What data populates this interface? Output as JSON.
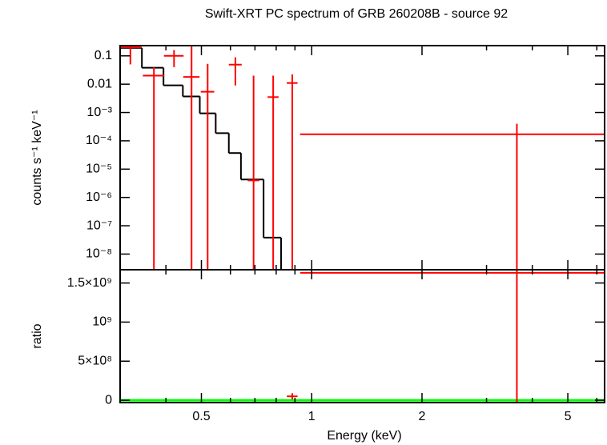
{
  "chart_data": [
    {
      "type": "errorbar",
      "title": "Swift-XRT PC spectrum of GRB 260208B - source 92",
      "y_label": "counts s⁻¹ keV⁻¹",
      "xlog": true,
      "ylog": true,
      "xlim": [
        0.3,
        6.3
      ],
      "ylim": [
        2.8e-09,
        0.23
      ],
      "xticks": [
        0.5,
        1,
        2,
        5
      ],
      "xminorticks": [
        0.3,
        0.4,
        0.6,
        0.7,
        0.8,
        0.9,
        3,
        4,
        6
      ],
      "yticks": [
        {
          "value": 0.1,
          "label": "0.1"
        },
        {
          "value": 0.01,
          "label": "0.01"
        },
        {
          "value": 0.001,
          "label": "10⁻³"
        },
        {
          "value": 0.0001,
          "label": "10⁻⁴"
        },
        {
          "value": 1e-05,
          "label": "10⁻⁵"
        },
        {
          "value": 1e-06,
          "label": "10⁻⁶"
        },
        {
          "value": 1e-07,
          "label": "10⁻⁷"
        },
        {
          "value": 1e-08,
          "label": "10⁻⁸"
        }
      ],
      "data": {
        "color": "#ff0000",
        "x": [
          0.32,
          0.371,
          0.421,
          0.47,
          0.52,
          0.619,
          0.694,
          0.785,
          0.885,
          3.63
        ],
        "xerr": [
          0.023,
          0.025,
          0.026,
          0.024,
          0.022,
          0.025,
          0.025,
          0.027,
          0.03,
          2.7
        ],
        "y": [
          0.2,
          0.02,
          0.1,
          0.018,
          0.0054,
          0.049,
          4e-06,
          0.0035,
          0.011,
          0.00017
        ],
        "yerr": [
          0.15,
          0.02,
          0.06,
          0.25,
          0.047,
          0.04,
          0.02,
          0.0165,
          0.011,
          0.00023
        ]
      },
      "model": {
        "color": "#000000",
        "bins": [
          0.298,
          0.344,
          0.394,
          0.445,
          0.495,
          0.547,
          0.594,
          0.641,
          0.739,
          0.825
        ],
        "values": [
          0.19,
          0.038,
          0.0091,
          0.0037,
          0.00093,
          0.000186,
          3.7e-05,
          4.3e-06,
          3.8e-08
        ]
      }
    },
    {
      "type": "errorbar",
      "x_label": "Energy (keV)",
      "y_label": "ratio",
      "xlog": true,
      "ylog": false,
      "xlim": [
        0.3,
        6.3
      ],
      "ylim": [
        -30000000,
        1670000000
      ],
      "xticks": [
        0.5,
        1,
        2,
        5
      ],
      "xminorticks": [
        0.3,
        0.4,
        0.6,
        0.7,
        0.8,
        0.9,
        3,
        4,
        6
      ],
      "yticks": [
        0,
        {
          "value": 500000000,
          "label": "5×10⁸"
        },
        {
          "value": 1000000000,
          "label": "10⁹"
        },
        {
          "value": 1500000000,
          "label": "1.5×10⁹"
        }
      ],
      "reference_line": 1,
      "reference_color": "#00ff00",
      "data": {
        "color": "#ff0000",
        "x": [
          0.885,
          3.63
        ],
        "xerr": [
          0.03,
          2.7
        ],
        "y": [
          50000000,
          1630000000
        ],
        "yerr": [
          40000000,
          2000000000
        ]
      }
    }
  ]
}
